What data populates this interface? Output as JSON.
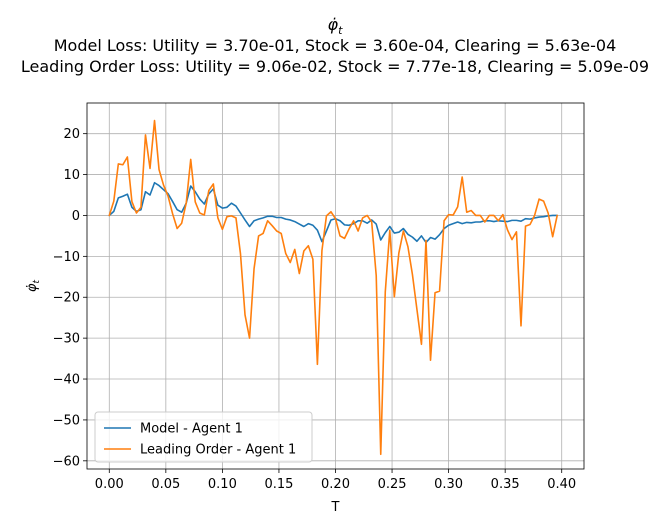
{
  "chart_data": {
    "type": "line",
    "title": {
      "main": "φ̇",
      "main_sub": "t",
      "line2": "Model Loss: Utility = 3.70e-01, Stock = 3.60e-04, Clearing = 5.63e-04",
      "line3": "Leading Order Loss: Utility = 9.06e-02, Stock = 7.77e-18, Clearing = 5.09e-09"
    },
    "xlabel": "T",
    "ylabel": "φ̇",
    "ylabel_sub": "t",
    "xlim": [
      -0.0197,
      0.4197
    ],
    "ylim": [
      -62.0,
      27.5
    ],
    "xticks": [
      0.0,
      0.05,
      0.1,
      0.15,
      0.2,
      0.25,
      0.3,
      0.35,
      0.4
    ],
    "xtick_labels": [
      "0.00",
      "0.05",
      "0.10",
      "0.15",
      "0.20",
      "0.25",
      "0.30",
      "0.35",
      "0.40"
    ],
    "yticks": [
      -60,
      -50,
      -40,
      -30,
      -20,
      -10,
      0,
      10,
      20
    ],
    "ytick_labels": [
      "−60",
      "−50",
      "−40",
      "−30",
      "−20",
      "−10",
      "0",
      "10",
      "20"
    ],
    "grid": true,
    "legend_position": "lower-left",
    "series": [
      {
        "name": "Model - Agent 1",
        "color": "#1f77b4",
        "x": [
          0.0,
          0.004,
          0.008,
          0.012,
          0.016,
          0.02,
          0.024,
          0.028,
          0.032,
          0.036,
          0.04,
          0.044,
          0.048,
          0.052,
          0.056,
          0.06,
          0.064,
          0.068,
          0.072,
          0.076,
          0.08,
          0.084,
          0.088,
          0.092,
          0.096,
          0.1,
          0.104,
          0.108,
          0.112,
          0.116,
          0.12,
          0.124,
          0.128,
          0.132,
          0.136,
          0.14,
          0.144,
          0.148,
          0.152,
          0.156,
          0.16,
          0.164,
          0.168,
          0.172,
          0.176,
          0.18,
          0.184,
          0.188,
          0.192,
          0.196,
          0.2,
          0.204,
          0.208,
          0.212,
          0.216,
          0.22,
          0.224,
          0.228,
          0.232,
          0.236,
          0.24,
          0.244,
          0.248,
          0.252,
          0.256,
          0.26,
          0.264,
          0.268,
          0.272,
          0.276,
          0.28,
          0.284,
          0.288,
          0.292,
          0.296,
          0.3,
          0.304,
          0.308,
          0.312,
          0.316,
          0.32,
          0.324,
          0.328,
          0.332,
          0.336,
          0.34,
          0.344,
          0.348,
          0.352,
          0.356,
          0.36,
          0.364,
          0.368,
          0.372,
          0.376,
          0.38,
          0.384,
          0.388,
          0.392,
          0.396
        ],
        "y": [
          0.0,
          1.0,
          4.3,
          4.7,
          5.2,
          2.0,
          1.0,
          1.4,
          5.8,
          5.0,
          8.0,
          7.3,
          6.3,
          5.3,
          3.4,
          1.4,
          0.8,
          3.0,
          7.2,
          5.8,
          4.0,
          2.8,
          5.3,
          6.5,
          2.5,
          1.8,
          2.0,
          3.0,
          2.3,
          0.6,
          -1.1,
          -2.7,
          -1.3,
          -0.9,
          -0.6,
          -0.2,
          -0.2,
          -0.5,
          -0.5,
          -0.9,
          -1.1,
          -1.5,
          -2.1,
          -2.7,
          -2.0,
          -2.4,
          -3.6,
          -6.4,
          -3.8,
          -1.1,
          -0.8,
          -1.3,
          -2.3,
          -2.4,
          -2.0,
          -1.3,
          -1.3,
          -1.9,
          -1.1,
          -2.1,
          -6.0,
          -4.2,
          -2.7,
          -4.3,
          -4.1,
          -3.2,
          -4.6,
          -5.3,
          -6.3,
          -5.0,
          -6.6,
          -5.4,
          -5.8,
          -4.7,
          -3.2,
          -2.4,
          -2.0,
          -1.6,
          -2.0,
          -1.7,
          -1.8,
          -1.6,
          -1.6,
          -1.3,
          -1.3,
          -1.5,
          -1.3,
          -1.4,
          -1.5,
          -1.2,
          -1.2,
          -1.4,
          -0.8,
          -0.9,
          -0.6,
          -0.4,
          -0.3,
          -0.1,
          0.0,
          0.0
        ]
      },
      {
        "name": "Leading Order - Agent 1",
        "color": "#ff7f0e",
        "x": [
          0.0,
          0.004,
          0.008,
          0.012,
          0.016,
          0.02,
          0.024,
          0.028,
          0.032,
          0.036,
          0.04,
          0.044,
          0.048,
          0.052,
          0.056,
          0.06,
          0.064,
          0.068,
          0.072,
          0.076,
          0.08,
          0.084,
          0.088,
          0.092,
          0.096,
          0.1,
          0.104,
          0.108,
          0.112,
          0.116,
          0.12,
          0.124,
          0.128,
          0.132,
          0.136,
          0.14,
          0.144,
          0.148,
          0.152,
          0.156,
          0.16,
          0.164,
          0.168,
          0.172,
          0.176,
          0.18,
          0.184,
          0.188,
          0.192,
          0.196,
          0.2,
          0.204,
          0.208,
          0.212,
          0.216,
          0.22,
          0.224,
          0.228,
          0.232,
          0.236,
          0.24,
          0.244,
          0.248,
          0.252,
          0.256,
          0.26,
          0.264,
          0.268,
          0.272,
          0.276,
          0.28,
          0.284,
          0.288,
          0.292,
          0.296,
          0.3,
          0.304,
          0.308,
          0.312,
          0.316,
          0.32,
          0.324,
          0.328,
          0.332,
          0.336,
          0.34,
          0.344,
          0.348,
          0.352,
          0.356,
          0.36,
          0.364,
          0.368,
          0.372,
          0.376,
          0.38,
          0.384,
          0.388,
          0.392,
          0.396
        ],
        "y": [
          0.0,
          3.5,
          12.6,
          12.4,
          14.3,
          3.4,
          0.6,
          2.0,
          19.7,
          11.5,
          23.2,
          11.2,
          7.4,
          4.7,
          0.4,
          -3.2,
          -1.9,
          3.0,
          13.7,
          3.3,
          0.6,
          0.1,
          6.1,
          7.7,
          -0.6,
          -3.4,
          -0.3,
          -0.1,
          -0.6,
          -9.4,
          -24.3,
          -30.0,
          -13.0,
          -5.0,
          -4.4,
          -1.3,
          -2.5,
          -3.8,
          -4.4,
          -9.3,
          -11.5,
          -8.3,
          -14.2,
          -8.7,
          -7.4,
          -10.7,
          -36.4,
          -8.6,
          -0.1,
          0.9,
          -0.8,
          -5.0,
          -5.6,
          -3.3,
          -1.3,
          -3.8,
          -0.6,
          0.0,
          -1.6,
          -14.7,
          -58.4,
          -18.7,
          -3.6,
          -19.9,
          -9.2,
          -3.8,
          -7.6,
          -14.4,
          -23.0,
          -31.5,
          -6.1,
          -35.4,
          -18.9,
          -18.5,
          -1.3,
          0.2,
          0.1,
          2.1,
          9.4,
          0.8,
          1.2,
          0.0,
          0.0,
          -1.6,
          0.0,
          0.0,
          -1.3,
          0.2,
          -3.5,
          -5.9,
          -4.0,
          -27.0,
          -2.6,
          -2.2,
          0.0,
          4.0,
          3.5,
          0.6,
          -5.2,
          0.0
        ]
      }
    ]
  }
}
